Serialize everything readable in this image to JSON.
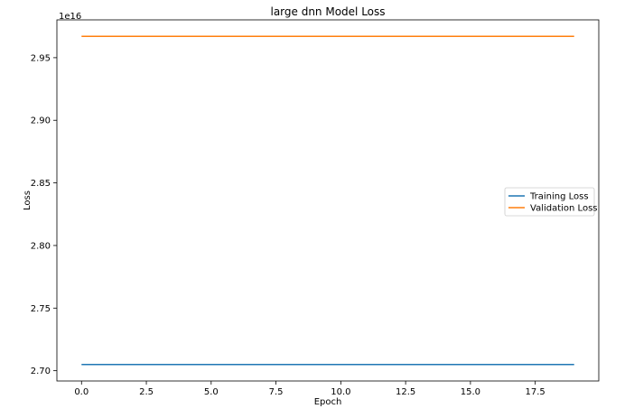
{
  "chart_data": {
    "type": "line",
    "title": "large dnn Model Loss",
    "xlabel": "Epoch",
    "ylabel": "Loss",
    "y_offset_label": "1e16",
    "y_scale": 1e+16,
    "xlim": [
      -0.95,
      19.95
    ],
    "ylim": [
      2.6918,
      2.9802
    ],
    "x_ticks": [
      0.0,
      2.5,
      5.0,
      7.5,
      10.0,
      12.5,
      15.0,
      17.5
    ],
    "x_tick_labels": [
      "0.0",
      "2.5",
      "5.0",
      "7.5",
      "10.0",
      "12.5",
      "15.0",
      "17.5"
    ],
    "y_ticks": [
      2.7,
      2.75,
      2.8,
      2.85,
      2.9,
      2.95
    ],
    "y_tick_labels": [
      "2.70",
      "2.75",
      "2.80",
      "2.85",
      "2.90",
      "2.95"
    ],
    "x": [
      0,
      1,
      2,
      3,
      4,
      5,
      6,
      7,
      8,
      9,
      10,
      11,
      12,
      13,
      14,
      15,
      16,
      17,
      18,
      19
    ],
    "series": [
      {
        "name": "Training Loss",
        "color": "#1f77b4",
        "values": [
          2.705,
          2.705,
          2.705,
          2.705,
          2.705,
          2.705,
          2.705,
          2.705,
          2.705,
          2.705,
          2.705,
          2.705,
          2.705,
          2.705,
          2.705,
          2.705,
          2.705,
          2.705,
          2.705,
          2.705
        ]
      },
      {
        "name": "Validation Loss",
        "color": "#ff7f0e",
        "values": [
          2.967,
          2.967,
          2.967,
          2.967,
          2.967,
          2.967,
          2.967,
          2.967,
          2.967,
          2.967,
          2.967,
          2.967,
          2.967,
          2.967,
          2.967,
          2.967,
          2.967,
          2.967,
          2.967,
          2.967
        ]
      }
    ],
    "legend_position": "center-right",
    "grid": false
  }
}
